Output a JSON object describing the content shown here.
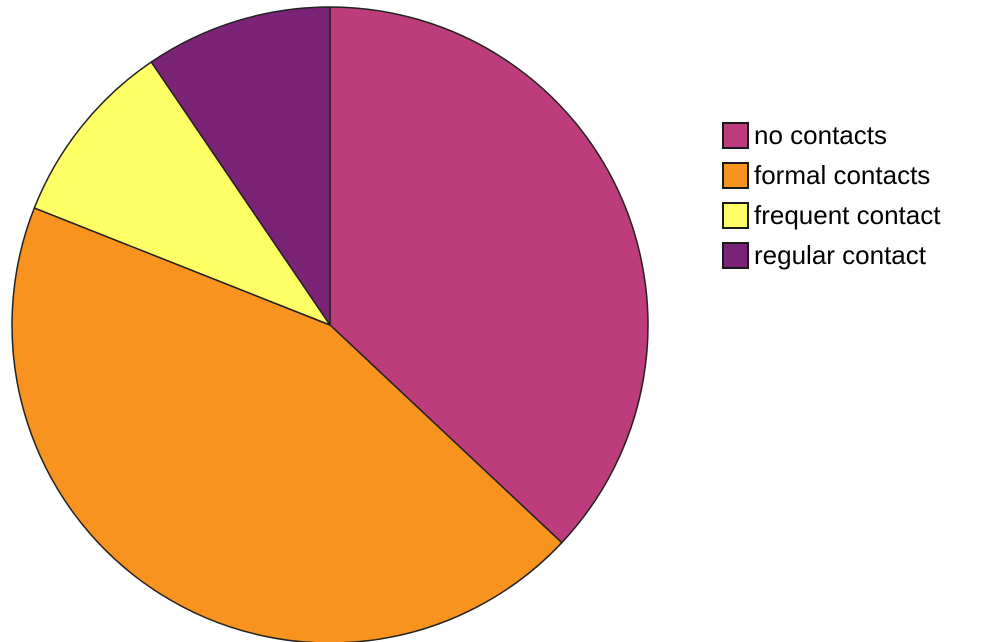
{
  "chart_data": {
    "type": "pie",
    "title": "",
    "start_angle_deg": 0,
    "direction": "clockwise",
    "legend_position": "right",
    "slices": [
      {
        "label": "no contacts",
        "value": 37,
        "color": "#bc3c7c"
      },
      {
        "label": "formal contacts",
        "value": 44,
        "color": "#f7931e"
      },
      {
        "label": "frequent contact",
        "value": 9.5,
        "color": "#ffff66"
      },
      {
        "label": "regular contact",
        "value": 9.5,
        "color": "#7b2377"
      }
    ]
  },
  "legend": {
    "items": [
      {
        "label": "no contacts",
        "color": "#bc3c7c"
      },
      {
        "label": "formal contacts",
        "color": "#f7931e"
      },
      {
        "label": "frequent contact",
        "color": "#ffff66"
      },
      {
        "label": "regular contact",
        "color": "#7b2377"
      }
    ]
  }
}
